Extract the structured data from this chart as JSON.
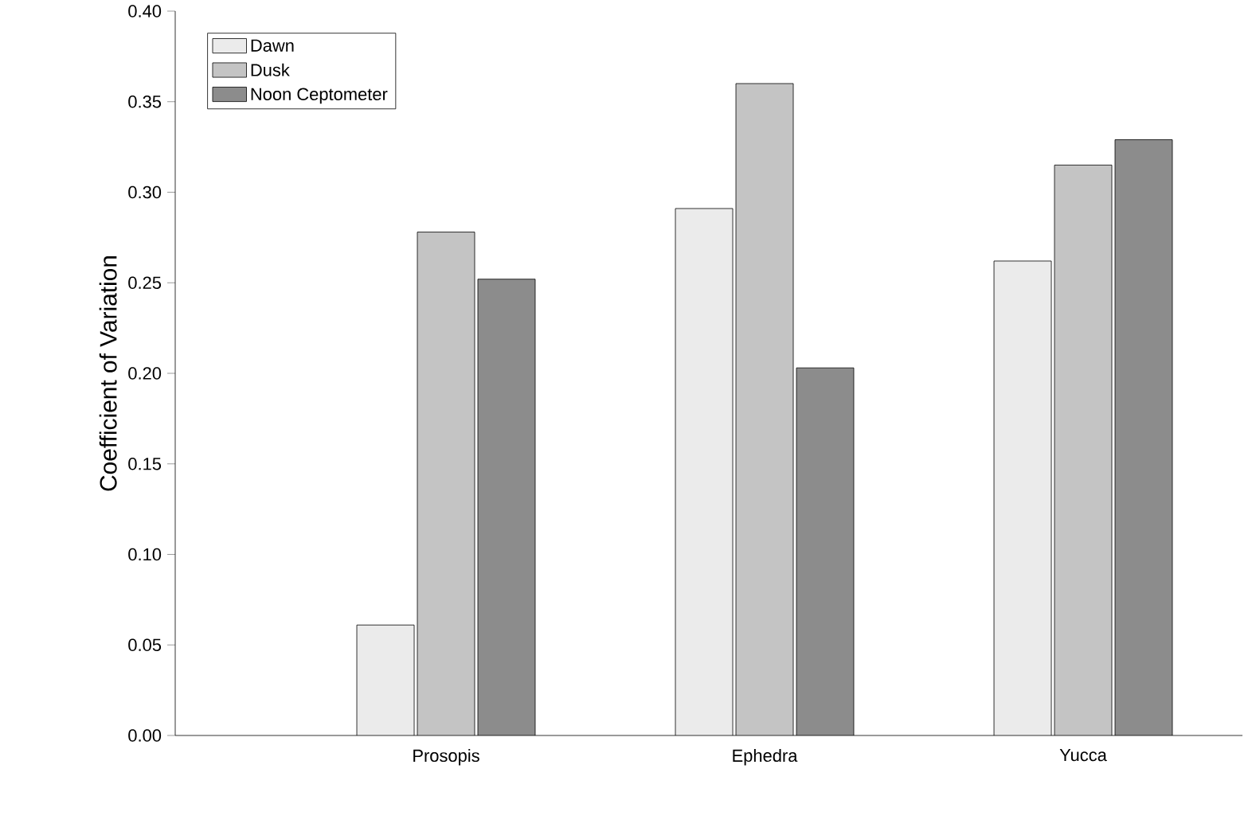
{
  "chart_data": {
    "type": "bar",
    "ylabel": "Coefficient of Variation",
    "categories": [
      "Prosopis",
      "Ephedra",
      "Yucca"
    ],
    "series": [
      {
        "name": "Dawn",
        "color": "#ebebeb",
        "values": [
          0.061,
          0.291,
          0.262
        ]
      },
      {
        "name": "Dusk",
        "color": "#c4c4c4",
        "values": [
          0.278,
          0.36,
          0.315
        ]
      },
      {
        "name": "Noon Ceptometer",
        "color": "#8c8c8c",
        "values": [
          0.252,
          0.203,
          0.329
        ]
      }
    ],
    "ylim": [
      0,
      0.4
    ],
    "yticks": [
      {
        "value": 0,
        "label": "0.00"
      },
      {
        "value": 0.05,
        "label": "0.05"
      },
      {
        "value": 0.1,
        "label": "0.10"
      },
      {
        "value": 0.15,
        "label": "0.15"
      },
      {
        "value": 0.2,
        "label": "0.20"
      },
      {
        "value": 0.25,
        "label": "0.25"
      },
      {
        "value": 0.3,
        "label": "0.30"
      },
      {
        "value": 0.35,
        "label": "0.35"
      },
      {
        "value": 0.4,
        "label": "0.40"
      }
    ],
    "legend": "top left"
  }
}
